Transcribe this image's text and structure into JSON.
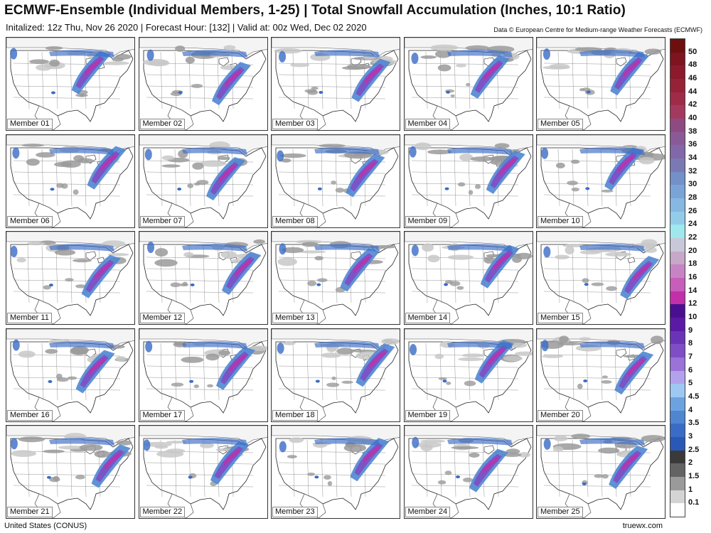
{
  "header": {
    "title": "ECMWF-Ensemble (Individual Members, 1-25) | Total Snowfall Accumulation (Inches, 10:1 Ratio)",
    "subtitle": "Initalized: 12z Thu, Nov 26 2020 | Forecast Hour: [132] | Valid at: 00z Wed, Dec 02 2020",
    "credit": "Data © European Centre for Medium-range Weather Forecasts (ECMWF)"
  },
  "members": [
    "Member 01",
    "Member 02",
    "Member 03",
    "Member 04",
    "Member 05",
    "Member 06",
    "Member 07",
    "Member 08",
    "Member 09",
    "Member 10",
    "Member 11",
    "Member 12",
    "Member 13",
    "Member 14",
    "Member 15",
    "Member 16",
    "Member 17",
    "Member 18",
    "Member 19",
    "Member 20",
    "Member 21",
    "Member 22",
    "Member 23",
    "Member 24",
    "Member 25"
  ],
  "legend": {
    "ticks": [
      "50",
      "48",
      "46",
      "44",
      "42",
      "40",
      "38",
      "36",
      "34",
      "32",
      "30",
      "28",
      "26",
      "24",
      "22",
      "20",
      "18",
      "16",
      "14",
      "12",
      "10",
      "9",
      "8",
      "7",
      "6",
      "5",
      "4.5",
      "4",
      "3.5",
      "3",
      "2.5",
      "2",
      "1.5",
      "1",
      "0.1"
    ],
    "colors": [
      "#6e0f0f",
      "#7d1420",
      "#8c1a2c",
      "#962238",
      "#9e2c48",
      "#a33a5e",
      "#8e4b82",
      "#8a5a98",
      "#8268a8",
      "#7b79b4",
      "#7390c8",
      "#7aa4d8",
      "#86b8e2",
      "#93cce8",
      "#9ee8ee",
      "#c8c8d8",
      "#c6a8c8",
      "#c784c4",
      "#c75fba",
      "#c32fa8",
      "#4a0f8f",
      "#5a1aa6",
      "#6a34b6",
      "#7f4ec4",
      "#9a72d8",
      "#b2a2ec",
      "#9ec8f2",
      "#6da2e0",
      "#4f86d2",
      "#3a6cc6",
      "#2a58b6",
      "#3a3a3a",
      "#636363",
      "#9a9a9a",
      "#d4d4d4",
      "#ffffff"
    ]
  },
  "footer": {
    "region": "United States (CONUS)",
    "site": "truewx.com"
  }
}
